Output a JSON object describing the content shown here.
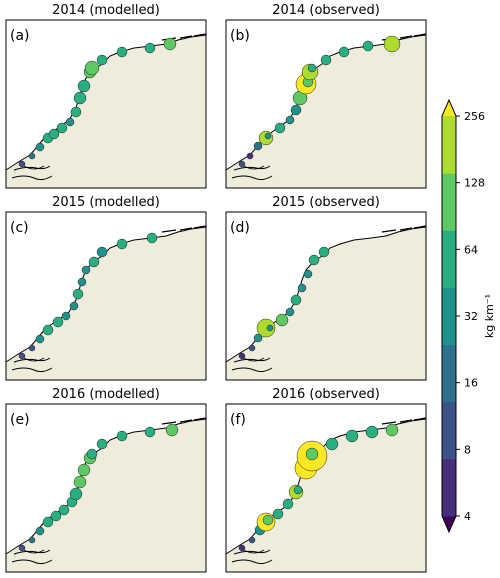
{
  "colorbar": {
    "label": "kg km⁻¹",
    "ticks": [
      "4",
      "8",
      "16",
      "32",
      "64",
      "128",
      "256"
    ],
    "colors": [
      "#440154",
      "#472d7b",
      "#3b528b",
      "#2c728e",
      "#21918c",
      "#28ae80",
      "#5ec962",
      "#addc30",
      "#fde725"
    ],
    "land_color": "#efecdc",
    "scale": "log2"
  },
  "chart_data": [
    {
      "type": "scatter",
      "title": "2014 (modelled)",
      "panel_label": "(a)"
    },
    {
      "type": "scatter",
      "title": "2014 (observed)",
      "panel_label": "(b)"
    },
    {
      "type": "scatter",
      "title": "2015 (modelled)",
      "panel_label": "(c)"
    },
    {
      "type": "scatter",
      "title": "2015 (observed)",
      "panel_label": "(d)"
    },
    {
      "type": "scatter",
      "title": "2016 (modelled)",
      "panel_label": "(e)"
    },
    {
      "type": "scatter",
      "title": "2016 (observed)",
      "panel_label": "(f)"
    }
  ]
}
